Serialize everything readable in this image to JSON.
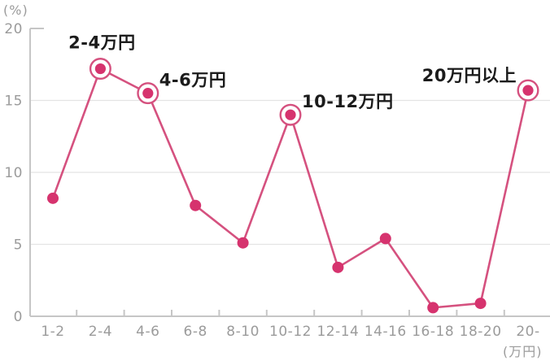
{
  "chart_data": {
    "type": "line",
    "title": "",
    "unit_y_label": "(%)",
    "unit_x_label": "(万円)",
    "categories": [
      "1-2",
      "2-4",
      "4-6",
      "6-8",
      "8-10",
      "10-12",
      "12-14",
      "14-16",
      "16-18",
      "18-20",
      "20-"
    ],
    "values": [
      8.2,
      17.2,
      15.5,
      7.7,
      5.1,
      14.0,
      3.4,
      5.4,
      0.6,
      0.9,
      15.7
    ],
    "ylim": [
      0,
      20
    ],
    "yticks": [
      0,
      5,
      10,
      15,
      20
    ],
    "grid": "horizontal",
    "legend": "none",
    "annotations": [
      {
        "category": "2-4",
        "label": "2-4万円",
        "position": "above"
      },
      {
        "category": "4-6",
        "label": "4-6万円",
        "position": "right"
      },
      {
        "category": "10-12",
        "label": "10-12万円",
        "position": "right"
      },
      {
        "category": "20-",
        "label": "20万円以上",
        "position": "left"
      }
    ],
    "colors": {
      "line": "#d5517f",
      "point": "#d6336e",
      "annotation_text": "#1b1b1b",
      "axis": "#c6c6c6",
      "grid": "#e4e4e4",
      "tick_label": "#9b9b9b",
      "background": "#ffffff"
    }
  }
}
